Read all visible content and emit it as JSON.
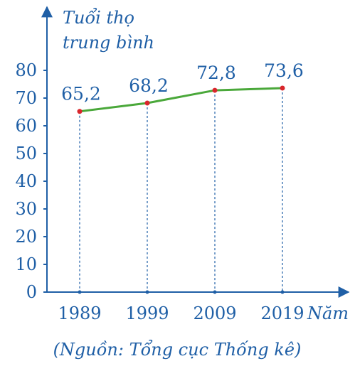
{
  "chart_data": {
    "type": "line",
    "title": "",
    "ylabel_line1": "Tuổi thọ",
    "ylabel_line2": "trung bình",
    "xlabel": "Năm",
    "categories": [
      "1989",
      "1999",
      "2009",
      "2019"
    ],
    "values": [
      65.2,
      68.2,
      72.8,
      73.6
    ],
    "value_labels": [
      "65,2",
      "68,2",
      "72,8",
      "73,6"
    ],
    "yticks": [
      "0",
      "10",
      "20",
      "30",
      "40",
      "50",
      "60",
      "70",
      "80"
    ],
    "ylim": [
      0,
      80
    ],
    "grid": false,
    "line_color": "#4aa83a",
    "point_color": "#d9262c",
    "axis_color": "#1f5fa6",
    "source_note": "(Nguồn: Tổng cục Thống kê)"
  }
}
